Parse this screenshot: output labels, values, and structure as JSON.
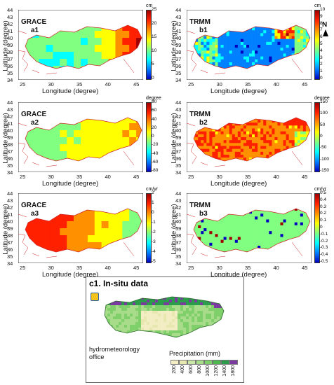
{
  "panels": [
    {
      "id": "a1",
      "source": "GRACE",
      "tag": "a1",
      "unit": "cm",
      "cbar_ticks": [
        "25",
        "20",
        "15",
        "10",
        "5",
        "0"
      ],
      "cbar_colors": [
        "#a00000",
        "#ff2000",
        "#ff9000",
        "#ffff00",
        "#80ff80",
        "#00ffff",
        "#0080ff",
        "#0000c0"
      ],
      "x_ticks": [
        "25",
        "30",
        "35",
        "40",
        "45"
      ],
      "y_ticks": [
        "44",
        "43",
        "42",
        "41",
        "40",
        "39",
        "38",
        "37",
        "36",
        "35",
        "34"
      ],
      "xlabel": "Longitude (degree)",
      "ylabel": "Latitude (degree)"
    },
    {
      "id": "b1",
      "source": "TRMM",
      "tag": "b1",
      "unit": "cm",
      "cbar_ticks": [
        "10",
        "9",
        "8",
        "7",
        "6",
        "5",
        "4",
        "3",
        "2",
        "1",
        "0"
      ],
      "cbar_colors": [
        "#a00000",
        "#ff2000",
        "#ff9000",
        "#ffff00",
        "#80ff80",
        "#00ffff",
        "#0080ff",
        "#0000c0"
      ],
      "x_ticks": [
        "25",
        "30",
        "35",
        "40",
        "45"
      ],
      "y_ticks": [
        "44",
        "43",
        "42",
        "41",
        "40",
        "39",
        "38",
        "37",
        "36",
        "35",
        "34"
      ],
      "xlabel": "Longitude (degree)",
      "ylabel": "Latitude (degree)"
    },
    {
      "id": "a2",
      "source": "GRACE",
      "tag": "a2",
      "unit": "degree",
      "cbar_ticks": [
        "80",
        "60",
        "40",
        "20",
        "0",
        "-20",
        "-40",
        "-60",
        "-80"
      ],
      "cbar_colors": [
        "#a00000",
        "#ff2000",
        "#ff9000",
        "#ffff00",
        "#80ff80",
        "#00ffff",
        "#0080ff",
        "#0000c0"
      ],
      "x_ticks": [
        "25",
        "30",
        "35",
        "40",
        "45"
      ],
      "y_ticks": [
        "44",
        "43",
        "42",
        "41",
        "40",
        "39",
        "38",
        "37",
        "36",
        "35",
        "34"
      ],
      "xlabel": "Longitude (degree)",
      "ylabel": "Latitude (degree)"
    },
    {
      "id": "b2",
      "source": "TRMM",
      "tag": "b2",
      "unit": "degree",
      "cbar_ticks": [
        "150",
        "100",
        "50",
        "0",
        "-50",
        "-100",
        "-150"
      ],
      "cbar_colors": [
        "#a00000",
        "#ff2000",
        "#ff9000",
        "#ffff00",
        "#80ff80",
        "#00ffff",
        "#0080ff",
        "#0000c0"
      ],
      "x_ticks": [
        "25",
        "30",
        "35",
        "40",
        "45"
      ],
      "y_ticks": [
        "44",
        "43",
        "42",
        "41",
        "40",
        "39",
        "38",
        "37",
        "36",
        "35",
        "34"
      ],
      "xlabel": "Longitude (degree)",
      "ylabel": "Latitude (degree)"
    },
    {
      "id": "a3",
      "source": "GRACE",
      "tag": "a3",
      "unit": "cm/yr",
      "cbar_ticks": [
        "2",
        "1",
        "0",
        "-1",
        "-2",
        "-3",
        "-4",
        "-5"
      ],
      "cbar_colors": [
        "#a00000",
        "#ff2000",
        "#ff9000",
        "#ffff00",
        "#80ff80",
        "#00ffff",
        "#0080ff",
        "#0000c0"
      ],
      "x_ticks": [
        "25",
        "30",
        "35",
        "40",
        "45"
      ],
      "y_ticks": [
        "44",
        "43",
        "42",
        "41",
        "40",
        "39",
        "38",
        "37",
        "36",
        "35",
        "34"
      ],
      "xlabel": "Longitude (degree)",
      "ylabel": "Latitude (degree)"
    },
    {
      "id": "b3",
      "source": "TRMM",
      "tag": "b3",
      "unit": "cm/yr",
      "cbar_ticks": [
        "0.5",
        "0.4",
        "0.3",
        "0.2",
        "0.1",
        "0",
        "-0.1",
        "-0.2",
        "-0.3",
        "-0.4",
        "-0.5"
      ],
      "cbar_colors": [
        "#a00000",
        "#ff2000",
        "#ff9000",
        "#ffff00",
        "#80ff80",
        "#00ffff",
        "#0080ff",
        "#0000c0"
      ],
      "x_ticks": [
        "25",
        "30",
        "35",
        "40",
        "45"
      ],
      "y_ticks": [
        "44",
        "43",
        "42",
        "41",
        "40",
        "39",
        "38",
        "37",
        "36",
        "35",
        "34"
      ],
      "xlabel": "Longitude (degree)",
      "ylabel": "Latitude (degree)"
    }
  ],
  "north_arrow": "N",
  "insitu": {
    "title": "c1. In-situ data",
    "office": "hydrometeorology\noffice",
    "legend_title": "Precipitation (mm)",
    "legend_ticks": [
      "200",
      "400",
      "600",
      "800",
      "1000",
      "1200",
      "1400",
      "1800"
    ],
    "legend_colors": [
      "#f3edc4",
      "#e6e8b0",
      "#c9e7a8",
      "#a8dc8a",
      "#7fcf6a",
      "#4cb84d",
      "#2a9c4a",
      "#7a3aa0"
    ]
  }
}
